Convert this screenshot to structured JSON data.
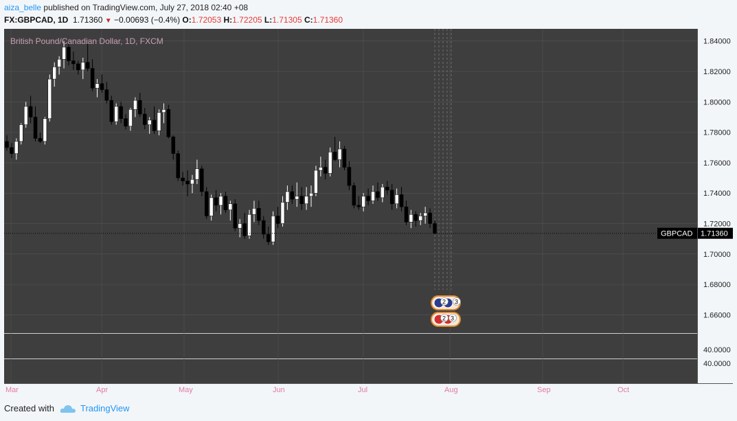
{
  "header": {
    "user": "aiza_belle",
    "published_text": "published on TradingView.com, July 27, 2018 02:40 +08",
    "symbol": "FX:GBPCAD, 1D",
    "last": "1.71360",
    "arrow": "▼",
    "change": "−0.00693 (−0.4%)",
    "o_label": "O:",
    "o_value": "1.72053",
    "h_label": "H:",
    "h_value": "1.72205",
    "l_label": "L:",
    "l_value": "1.71305",
    "c_label": "C:",
    "c_value": "1.71360"
  },
  "footer": {
    "created_with": "Created with",
    "brand": "TradingView"
  },
  "colors": {
    "pane_bg": "#3e3e3e",
    "up_candle": "#ffffff",
    "down_candle": "#000000",
    "grid": "#555555",
    "axis_text": "#222222",
    "title_text": "#c9a0b4",
    "time_label": "#e07aa6",
    "price_tag_bg": "#000000"
  },
  "chart_data": {
    "type": "candlestick",
    "title": "British Pound/Canadian Dollar, 1D, FXCM",
    "symbol_tag": "GBPCAD",
    "last_price": 1.7136,
    "last_price_label": "1.71360",
    "ylim": [
      1.648,
      1.848
    ],
    "price_ticks": [
      "1.84000",
      "1.82000",
      "1.80000",
      "1.78000",
      "1.76000",
      "1.74000",
      "1.72000",
      "1.70000",
      "1.68000",
      "1.66000"
    ],
    "indicator_ticks": [
      "40.0000",
      "40.0000"
    ],
    "month_labels": [
      "Mar",
      "Apr",
      "May",
      "Jun",
      "Jul",
      "Aug",
      "Sep",
      "Oct"
    ],
    "event_badges": [
      "2",
      "3",
      "2",
      "3"
    ],
    "candles": [
      [
        1.774,
        1.778,
        1.768,
        1.77
      ],
      [
        1.77,
        1.773,
        1.763,
        1.766
      ],
      [
        1.766,
        1.776,
        1.762,
        1.774
      ],
      [
        1.774,
        1.786,
        1.772,
        1.785
      ],
      [
        1.785,
        1.8,
        1.783,
        1.797
      ],
      [
        1.797,
        1.804,
        1.786,
        1.79
      ],
      [
        1.79,
        1.797,
        1.774,
        1.776
      ],
      [
        1.776,
        1.78,
        1.773,
        1.774
      ],
      [
        1.774,
        1.79,
        1.772,
        1.789
      ],
      [
        1.789,
        1.818,
        1.787,
        1.815
      ],
      [
        1.815,
        1.826,
        1.81,
        1.823
      ],
      [
        1.823,
        1.83,
        1.818,
        1.828
      ],
      [
        1.828,
        1.84,
        1.822,
        1.836
      ],
      [
        1.836,
        1.839,
        1.824,
        1.827
      ],
      [
        1.827,
        1.833,
        1.821,
        1.825
      ],
      [
        1.825,
        1.827,
        1.818,
        1.821
      ],
      [
        1.821,
        1.829,
        1.815,
        1.826
      ],
      [
        1.826,
        1.838,
        1.82,
        1.822
      ],
      [
        1.822,
        1.828,
        1.807,
        1.809
      ],
      [
        1.809,
        1.815,
        1.803,
        1.812
      ],
      [
        1.812,
        1.818,
        1.806,
        1.808
      ],
      [
        1.808,
        1.813,
        1.799,
        1.801
      ],
      [
        1.801,
        1.804,
        1.785,
        1.787
      ],
      [
        1.787,
        1.799,
        1.785,
        1.797
      ],
      [
        1.797,
        1.8,
        1.786,
        1.789
      ],
      [
        1.789,
        1.792,
        1.782,
        1.784
      ],
      [
        1.784,
        1.796,
        1.781,
        1.795
      ],
      [
        1.795,
        1.803,
        1.79,
        1.801
      ],
      [
        1.801,
        1.806,
        1.79,
        1.792
      ],
      [
        1.792,
        1.796,
        1.782,
        1.785
      ],
      [
        1.785,
        1.79,
        1.779,
        1.788
      ],
      [
        1.788,
        1.797,
        1.779,
        1.781
      ],
      [
        1.781,
        1.795,
        1.778,
        1.793
      ],
      [
        1.793,
        1.799,
        1.786,
        1.795
      ],
      [
        1.795,
        1.798,
        1.776,
        1.777
      ],
      [
        1.777,
        1.778,
        1.762,
        1.766
      ],
      [
        1.766,
        1.768,
        1.748,
        1.75
      ],
      [
        1.75,
        1.754,
        1.745,
        1.748
      ],
      [
        1.748,
        1.755,
        1.738,
        1.746
      ],
      [
        1.746,
        1.752,
        1.74,
        1.749
      ],
      [
        1.749,
        1.762,
        1.746,
        1.756
      ],
      [
        1.756,
        1.758,
        1.738,
        1.741
      ],
      [
        1.741,
        1.744,
        1.723,
        1.725
      ],
      [
        1.725,
        1.739,
        1.722,
        1.737
      ],
      [
        1.737,
        1.742,
        1.728,
        1.732
      ],
      [
        1.732,
        1.74,
        1.726,
        1.738
      ],
      [
        1.738,
        1.741,
        1.727,
        1.729
      ],
      [
        1.729,
        1.735,
        1.722,
        1.733
      ],
      [
        1.733,
        1.736,
        1.715,
        1.717
      ],
      [
        1.717,
        1.723,
        1.711,
        1.72
      ],
      [
        1.72,
        1.727,
        1.71,
        1.712
      ],
      [
        1.712,
        1.729,
        1.71,
        1.726
      ],
      [
        1.726,
        1.735,
        1.721,
        1.73
      ],
      [
        1.73,
        1.735,
        1.719,
        1.722
      ],
      [
        1.722,
        1.725,
        1.71,
        1.713
      ],
      [
        1.713,
        1.718,
        1.706,
        1.708
      ],
      [
        1.708,
        1.728,
        1.706,
        1.725
      ],
      [
        1.725,
        1.731,
        1.717,
        1.72
      ],
      [
        1.72,
        1.738,
        1.718,
        1.734
      ],
      [
        1.734,
        1.745,
        1.729,
        1.741
      ],
      [
        1.741,
        1.745,
        1.733,
        1.736
      ],
      [
        1.736,
        1.747,
        1.731,
        1.738
      ],
      [
        1.738,
        1.744,
        1.729,
        1.733
      ],
      [
        1.733,
        1.744,
        1.729,
        1.738
      ],
      [
        1.738,
        1.745,
        1.731,
        1.74
      ],
      [
        1.74,
        1.758,
        1.738,
        1.755
      ],
      [
        1.755,
        1.764,
        1.751,
        1.757
      ],
      [
        1.757,
        1.762,
        1.749,
        1.753
      ],
      [
        1.753,
        1.77,
        1.751,
        1.767
      ],
      [
        1.767,
        1.777,
        1.761,
        1.762
      ],
      [
        1.762,
        1.774,
        1.757,
        1.769
      ],
      [
        1.769,
        1.771,
        1.755,
        1.757
      ],
      [
        1.757,
        1.761,
        1.742,
        1.745
      ],
      [
        1.745,
        1.747,
        1.73,
        1.732
      ],
      [
        1.732,
        1.738,
        1.729,
        1.731
      ],
      [
        1.731,
        1.74,
        1.728,
        1.738
      ],
      [
        1.738,
        1.743,
        1.732,
        1.735
      ],
      [
        1.735,
        1.745,
        1.733,
        1.741
      ],
      [
        1.741,
        1.747,
        1.735,
        1.737
      ],
      [
        1.737,
        1.746,
        1.734,
        1.744
      ],
      [
        1.744,
        1.748,
        1.739,
        1.742
      ],
      [
        1.742,
        1.746,
        1.729,
        1.733
      ],
      [
        1.733,
        1.743,
        1.73,
        1.739
      ],
      [
        1.739,
        1.744,
        1.728,
        1.731
      ],
      [
        1.731,
        1.735,
        1.719,
        1.721
      ],
      [
        1.721,
        1.729,
        1.717,
        1.726
      ],
      [
        1.726,
        1.728,
        1.718,
        1.722
      ],
      [
        1.722,
        1.727,
        1.719,
        1.725
      ],
      [
        1.725,
        1.731,
        1.72,
        1.727
      ],
      [
        1.727,
        1.73,
        1.717,
        1.72
      ],
      [
        1.72,
        1.722,
        1.713,
        1.7136
      ]
    ]
  }
}
